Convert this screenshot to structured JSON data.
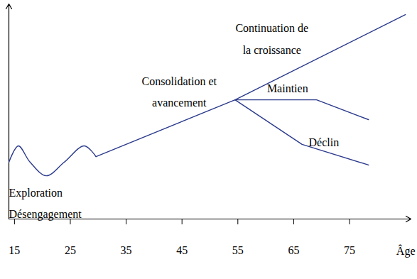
{
  "chart_data": {
    "type": "line",
    "xlabel": "Âge",
    "xlim": [
      14,
      86
    ],
    "xticks": [
      15,
      25,
      35,
      45,
      55,
      65,
      75
    ],
    "ylim": [
      0,
      100
    ],
    "tick_labels": "x",
    "color": "#2b3a8c",
    "series": [
      {
        "type": "spline",
        "x": [
          14.0,
          15.7,
          17.8,
          20.7,
          23.9,
          27.5,
          29.6
        ],
        "values": [
          26.4,
          34.0,
          26.4,
          20.1,
          26.4,
          34.0,
          29.0
        ]
      },
      {
        "type": "line",
        "x": [
          29.6,
          54.5
        ],
        "values": [
          29.0,
          55.4
        ]
      },
      {
        "type": "line",
        "x": [
          54.5,
          85.0
        ],
        "values": [
          55.4,
          95.0
        ]
      },
      {
        "type": "line",
        "x": [
          54.5,
          69.1,
          78.4
        ],
        "values": [
          55.4,
          55.4,
          46.2
        ]
      },
      {
        "type": "line",
        "x": [
          54.5,
          66.5,
          78.4
        ],
        "values": [
          55.4,
          34.7,
          25.1
        ]
      }
    ],
    "annotations": [
      {
        "text": "Continuation de\nla croissance",
        "x": 61.1,
        "y": 85.1
      },
      {
        "text": "Maintien",
        "x": 63.9,
        "y": 62.0
      },
      {
        "text": "Consolidation et\navancement",
        "x": 44.5,
        "y": 60.4
      },
      {
        "text": "Déclin",
        "x": 70.4,
        "y": 37.0
      },
      {
        "text": "Exploration\nDésengagement",
        "x": 14,
        "y": 8.6
      }
    ]
  }
}
